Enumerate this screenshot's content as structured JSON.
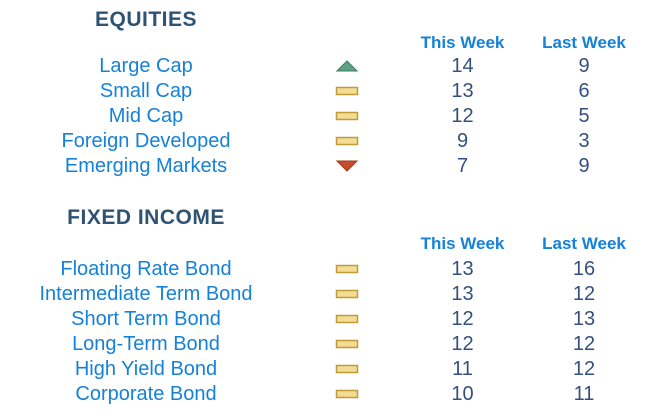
{
  "chart_data": [
    {
      "type": "table",
      "title": "EQUITIES",
      "columns": [
        "This Week",
        "Last Week"
      ],
      "rows": [
        {
          "label": "Large Cap",
          "trend": "up",
          "this_week": 14,
          "last_week": 9
        },
        {
          "label": "Small Cap",
          "trend": "flat",
          "this_week": 13,
          "last_week": 6
        },
        {
          "label": "Mid Cap",
          "trend": "flat",
          "this_week": 12,
          "last_week": 5
        },
        {
          "label": "Foreign Developed",
          "trend": "flat",
          "this_week": 9,
          "last_week": 3
        },
        {
          "label": "Emerging Markets",
          "trend": "down",
          "this_week": 7,
          "last_week": 9
        }
      ]
    },
    {
      "type": "table",
      "title": "FIXED INCOME",
      "columns": [
        "This Week",
        "Last Week"
      ],
      "rows": [
        {
          "label": "Floating Rate Bond",
          "trend": "flat",
          "this_week": 13,
          "last_week": 16
        },
        {
          "label": "Intermediate Term Bond",
          "trend": "flat",
          "this_week": 13,
          "last_week": 12
        },
        {
          "label": "Short Term Bond",
          "trend": "flat",
          "this_week": 12,
          "last_week": 13
        },
        {
          "label": "Long-Term Bond",
          "trend": "flat",
          "this_week": 12,
          "last_week": 12
        },
        {
          "label": "High Yield Bond",
          "trend": "flat",
          "this_week": 11,
          "last_week": 12
        },
        {
          "label": "Corporate Bond",
          "trend": "flat",
          "this_week": 10,
          "last_week": 11
        }
      ]
    }
  ],
  "colors": {
    "background": "#ffffff",
    "title_text": "#2e5374",
    "header_text": "#1581d8",
    "label_text": "#1581d8",
    "value_text": "#35507e",
    "trend_up_fill": "#5ea189",
    "trend_up_stroke": "#3c7c63",
    "trend_down_fill": "#c24e2b",
    "trend_down_stroke": "#a23a1d",
    "trend_flat_fill": "#f2dc96",
    "trend_flat_stroke": "#bf9c38"
  }
}
